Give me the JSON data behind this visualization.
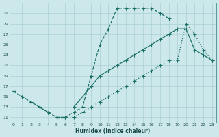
{
  "xlabel": "Humidex (Indice chaleur)",
  "bg_color": "#cce8ea",
  "line_color": "#1a6e68",
  "grid_color": "#aad0d4",
  "xmin": -0.5,
  "xmax": 23.5,
  "ymin": 10,
  "ymax": 33,
  "yticks": [
    11,
    13,
    15,
    17,
    19,
    21,
    23,
    25,
    27,
    29,
    31
  ],
  "xticks": [
    0,
    1,
    2,
    3,
    4,
    5,
    6,
    7,
    8,
    9,
    10,
    11,
    12,
    13,
    14,
    15,
    16,
    17,
    18,
    19,
    20,
    21,
    22,
    23
  ],
  "curve1_x": [
    0,
    1,
    2,
    3,
    4,
    5,
    6,
    7,
    8,
    9,
    10,
    11,
    12,
    13,
    14,
    15,
    16,
    17,
    18
  ],
  "curve1_y": [
    16,
    15,
    14,
    13,
    12,
    11,
    11,
    12,
    13,
    19,
    25,
    28,
    32,
    32,
    32,
    32,
    32,
    31,
    30
  ],
  "curve2_x": [
    0,
    1,
    2,
    3,
    4,
    5,
    6,
    7,
    8,
    9,
    10,
    11,
    12,
    13,
    14,
    15,
    16,
    17,
    18,
    19,
    20,
    21,
    22,
    23
  ],
  "curve2_y": [
    16,
    15,
    14,
    13,
    12,
    11,
    11,
    11,
    12,
    13,
    14,
    15,
    16,
    17,
    18,
    19,
    20,
    21,
    22,
    22,
    29,
    27,
    24,
    22
  ],
  "curve3_x": [
    7,
    8,
    9,
    10,
    11,
    12,
    13,
    14,
    15,
    16,
    17,
    18,
    19,
    20,
    21,
    22,
    23
  ],
  "curve3_y": [
    13,
    15,
    17,
    19,
    20,
    21,
    22,
    23,
    24,
    25,
    26,
    27,
    28,
    28,
    24,
    23,
    22
  ]
}
